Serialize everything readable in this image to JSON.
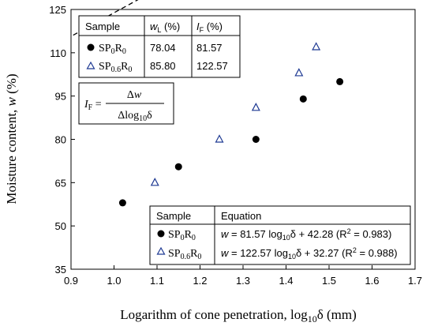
{
  "chart_data": {
    "type": "scatter",
    "xlabel": "Logarithm of cone penetration, log10δ (mm)",
    "ylabel": "Moisture content, w (%)",
    "xlim": [
      0.9,
      1.7
    ],
    "ylim": [
      35,
      125
    ],
    "xticks": [
      "0.9",
      "1.0",
      "1.1",
      "1.2",
      "1.3",
      "1.4",
      "1.5",
      "1.6",
      "1.7"
    ],
    "yticks": [
      "35",
      "50",
      "65",
      "80",
      "95",
      "110",
      "125"
    ],
    "grid": false,
    "series": [
      {
        "name": "SP0R0",
        "marker": "filled-circle",
        "color": "#000000",
        "x": [
          1.02,
          1.15,
          1.33,
          1.44,
          1.525
        ],
        "y": [
          58,
          70.5,
          80,
          94,
          100
        ],
        "fit": {
          "slope": 81.57,
          "intercept": 42.28,
          "x_range": [
            0.905,
            1.575
          ],
          "color": "#000000"
        }
      },
      {
        "name": "SP0.6R0",
        "marker": "open-triangle",
        "color": "#1f3a93",
        "x": [
          1.095,
          1.245,
          1.33,
          1.43,
          1.47
        ],
        "y": [
          65,
          80,
          91,
          103,
          112
        ],
        "fit": {
          "slope": 122.57,
          "intercept": 32.27,
          "x_range": [
            0.95,
            1.555
          ],
          "color": "#1f3a93"
        }
      }
    ],
    "table_top": {
      "headers": [
        "Sample",
        "wL (%)",
        "IF (%)"
      ],
      "rows": [
        {
          "sample": "SP0R0",
          "wL": "78.04",
          "IF": "81.57"
        },
        {
          "sample": "SP0.6R0",
          "wL": "85.80",
          "IF": "122.57"
        }
      ]
    },
    "formula": {
      "lhs": "IF =",
      "numerator": "Δw",
      "denominator": "Δlog10δ"
    },
    "table_bottom": {
      "headers": [
        "Sample",
        "Equation"
      ],
      "rows": [
        {
          "sample": "SP0R0",
          "equation": "w = 81.57 log10δ + 42.28 (R² = 0.983)"
        },
        {
          "sample": "SP0.6R0",
          "equation": "w = 122.57 log10δ + 32.27 (R² = 0.988)"
        }
      ]
    }
  }
}
